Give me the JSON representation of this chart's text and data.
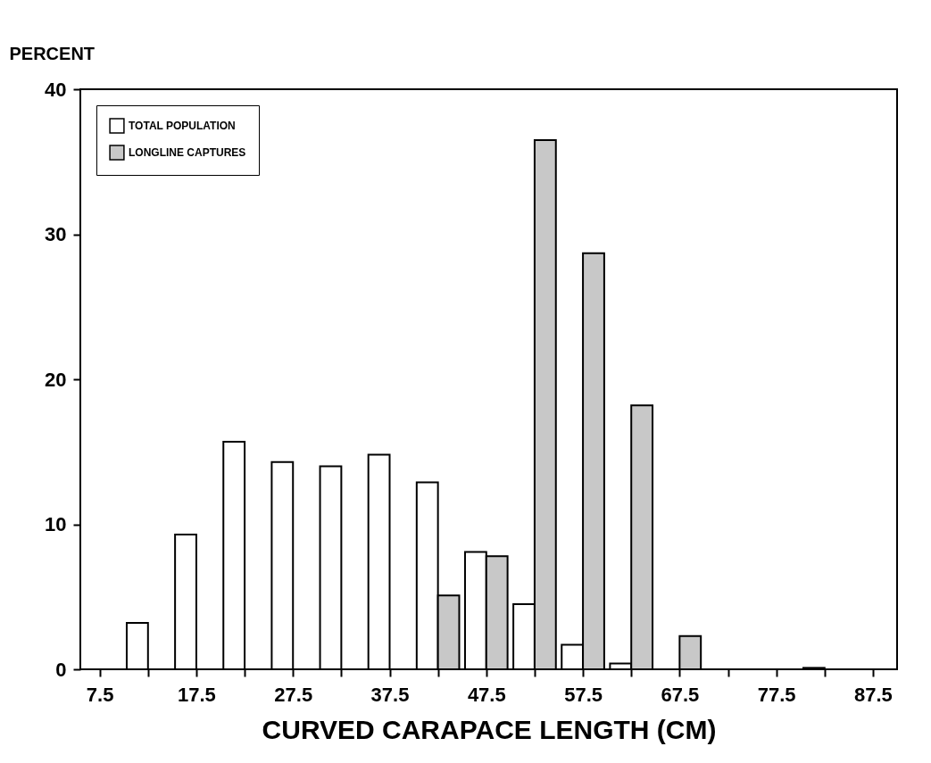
{
  "chart_data": {
    "type": "bar",
    "ylabel": "PERCENT",
    "xlabel": "CURVED CARAPACE LENGTH (CM)",
    "x": [
      12.5,
      17.5,
      22.5,
      27.5,
      32.5,
      37.5,
      42.5,
      47.5,
      52.5,
      57.5,
      62.5,
      67.5,
      72.5,
      77.5,
      82.5
    ],
    "series": [
      {
        "name": "TOTAL POPULATION",
        "color": "#ffffff",
        "values": [
          3.2,
          9.3,
          15.7,
          14.3,
          14.0,
          14.8,
          12.9,
          8.1,
          4.5,
          1.7,
          0.4,
          null,
          null,
          null,
          0.1
        ]
      },
      {
        "name": "LONGLINE CAPTURES",
        "color": "#c8c8c8",
        "values": [
          null,
          null,
          null,
          null,
          null,
          null,
          5.1,
          7.8,
          36.5,
          28.7,
          18.2,
          2.3,
          null,
          null,
          null
        ]
      }
    ],
    "xlim": [
      5.5,
      90
    ],
    "xticks": [
      7.5,
      {
        "value": 12.5,
        "label": null
      },
      17.5,
      {
        "value": 22.5,
        "label": null
      },
      27.5,
      {
        "value": 32.5,
        "label": null
      },
      37.5,
      {
        "value": 42.5,
        "label": null
      },
      47.5,
      {
        "value": 52.5,
        "label": null
      },
      57.5,
      {
        "value": 62.5,
        "label": null
      },
      67.5,
      {
        "value": 72.5,
        "label": null
      },
      77.5,
      {
        "value": 82.5,
        "label": null
      },
      87.5
    ],
    "ylim": [
      0,
      40
    ],
    "yticks": [
      0,
      10,
      20,
      30,
      40
    ],
    "grid": false,
    "legend": "top left"
  }
}
